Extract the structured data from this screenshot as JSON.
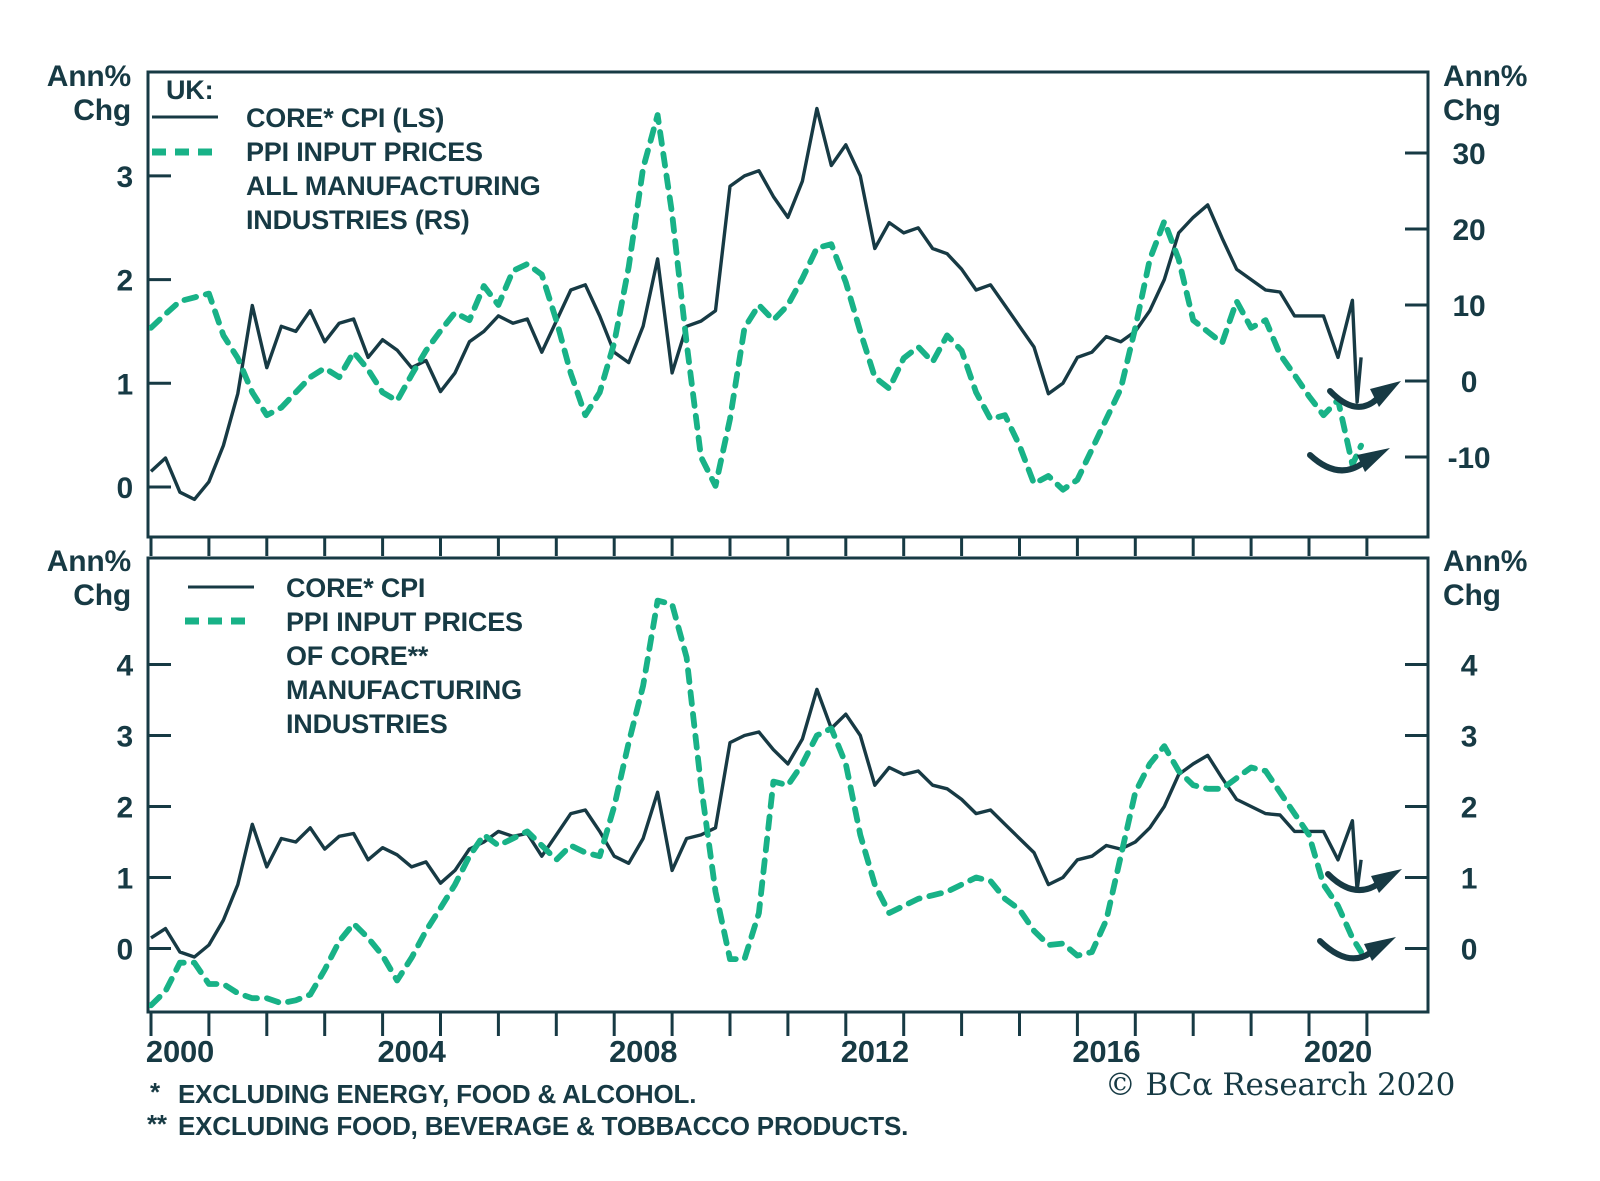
{
  "page": {
    "background": "#ffffff",
    "ink_color": "#173a44",
    "accent_color": "#18b287"
  },
  "copyright": "© BCα Research 2020",
  "footnotes": [
    {
      "marker": "*",
      "text": "EXCLUDING ENERGY, FOOD & ALCOHOL."
    },
    {
      "marker": "**",
      "text": "EXCLUDING FOOD, BEVERAGE & TOBBACCO PRODUCTS."
    }
  ],
  "chart_data": [
    {
      "type": "line",
      "panel": "top",
      "legend": {
        "heading": "UK:",
        "entries": [
          {
            "style": "solid",
            "label_lines": [
              "CORE* CPI (LS)"
            ]
          },
          {
            "style": "dashed",
            "label_lines": [
              "PPI INPUT PRICES",
              "ALL MANUFACTURING",
              "INDUSTRIES (RS)"
            ]
          }
        ]
      },
      "left_axis": {
        "title": [
          "Ann%",
          "Chg"
        ],
        "ticks": [
          3,
          2,
          1,
          0
        ],
        "range": [
          -0.5,
          4.0
        ]
      },
      "right_axis": {
        "title": [
          "Ann%",
          "Chg"
        ],
        "ticks": [
          30,
          20,
          10,
          0,
          -10
        ],
        "range": [
          -20,
          41
        ]
      },
      "x_axis": {
        "labeled_years": [
          2000,
          2004,
          2008,
          2012,
          2016,
          2020
        ],
        "minor_tick_every": 1,
        "range": [
          1999.95,
          2022.1
        ],
        "grid": false
      },
      "series": [
        {
          "name": "CORE* CPI (LS)",
          "axis": "left",
          "style": "solid",
          "color": "#173a44",
          "x_start": 2000.0,
          "x_step": 0.25,
          "values": [
            0.15,
            0.28,
            -0.05,
            -0.12,
            0.05,
            0.4,
            0.9,
            1.75,
            1.15,
            1.55,
            1.5,
            1.7,
            1.4,
            1.58,
            1.62,
            1.25,
            1.42,
            1.32,
            1.15,
            1.22,
            0.92,
            1.1,
            1.4,
            1.5,
            1.65,
            1.58,
            1.62,
            1.3,
            1.6,
            1.9,
            1.95,
            1.65,
            1.3,
            1.2,
            1.55,
            2.2,
            1.1,
            1.55,
            1.6,
            1.7,
            2.9,
            3.0,
            3.05,
            2.8,
            2.6,
            2.95,
            3.65,
            3.1,
            3.3,
            3.0,
            2.3,
            2.55,
            2.45,
            2.5,
            2.3,
            2.25,
            2.1,
            1.9,
            1.95,
            1.75,
            1.55,
            1.35,
            0.9,
            1.0,
            1.25,
            1.3,
            1.45,
            1.4,
            1.5,
            1.7,
            2.0,
            2.45,
            2.6,
            2.72,
            2.4,
            2.1,
            2.0,
            1.9,
            1.88,
            1.65,
            1.65,
            1.65,
            1.25
          ],
          "tail": [
            [
              2020.75,
              1.8
            ],
            [
              2020.83,
              0.82
            ],
            [
              2020.9,
              1.25
            ]
          ]
        },
        {
          "name": "PPI INPUT PRICES ALL MANUFACTURING INDUSTRIES (RS)",
          "axis": "right",
          "style": "dashed",
          "color": "#18b287",
          "x_start": 2000.0,
          "x_step": 0.25,
          "values": [
            7.0,
            8.8,
            10.5,
            11.0,
            11.5,
            6.0,
            3.0,
            -1.5,
            -4.5,
            -3.5,
            -1.5,
            0.5,
            1.7,
            0.5,
            3.8,
            1.5,
            -1.5,
            -2.6,
            0.8,
            4.0,
            6.6,
            9.0,
            8.0,
            12.5,
            10.0,
            14.5,
            15.4,
            14.0,
            8.0,
            1.0,
            -4.5,
            -1.5,
            5.0,
            15.0,
            28.0,
            35.0,
            22.0,
            5.0,
            -10.0,
            -13.8,
            -5.0,
            7.0,
            10.0,
            8.0,
            10.0,
            13.5,
            17.5,
            18.0,
            13.0,
            6.5,
            0.5,
            -1.0,
            3.0,
            4.5,
            2.5,
            6.0,
            4.0,
            -1.5,
            -5.0,
            -4.5,
            -8.5,
            -13.5,
            -12.5,
            -14.3,
            -13.0,
            -9.0,
            -5.0,
            -1.0,
            7.0,
            16.0,
            21.0,
            16.0,
            8.0,
            6.5,
            5.0,
            10.5,
            7.0,
            8.0,
            3.5,
            0.8,
            -2.0,
            -4.5,
            -2.5
          ],
          "tail": [
            [
              2020.75,
              -11.0
            ],
            [
              2020.9,
              -8.5
            ]
          ]
        }
      ]
    },
    {
      "type": "line",
      "panel": "bottom",
      "legend": {
        "heading": "",
        "entries": [
          {
            "style": "solid",
            "label_lines": [
              "CORE* CPI"
            ]
          },
          {
            "style": "dashed",
            "label_lines": [
              "PPI INPUT PRICES",
              "OF CORE**",
              "MANUFACTURING",
              "INDUSTRIES"
            ]
          }
        ]
      },
      "left_axis": {
        "title": [
          "Ann%",
          "Chg"
        ],
        "ticks": [
          4,
          3,
          2,
          1,
          0
        ],
        "range": [
          -0.9,
          5.5
        ]
      },
      "right_axis": {
        "title": [
          "Ann%",
          "Chg"
        ],
        "ticks": [
          4,
          3,
          2,
          1,
          0
        ],
        "range": [
          -0.9,
          5.5
        ]
      },
      "x_axis": {
        "labeled_years": [
          2000,
          2004,
          2008,
          2012,
          2016,
          2020
        ],
        "minor_tick_every": 1,
        "range": [
          1999.95,
          2022.1
        ],
        "grid": false
      },
      "series": [
        {
          "name": "CORE* CPI",
          "axis": "left",
          "style": "solid",
          "color": "#173a44",
          "x_start": 2000.0,
          "x_step": 0.25,
          "values": [
            0.15,
            0.28,
            -0.05,
            -0.12,
            0.05,
            0.4,
            0.9,
            1.75,
            1.15,
            1.55,
            1.5,
            1.7,
            1.4,
            1.58,
            1.62,
            1.25,
            1.42,
            1.32,
            1.15,
            1.22,
            0.92,
            1.1,
            1.4,
            1.5,
            1.65,
            1.58,
            1.62,
            1.3,
            1.6,
            1.9,
            1.95,
            1.65,
            1.3,
            1.2,
            1.55,
            2.2,
            1.1,
            1.55,
            1.6,
            1.7,
            2.9,
            3.0,
            3.05,
            2.8,
            2.6,
            2.95,
            3.65,
            3.1,
            3.3,
            3.0,
            2.3,
            2.55,
            2.45,
            2.5,
            2.3,
            2.25,
            2.1,
            1.9,
            1.95,
            1.75,
            1.55,
            1.35,
            0.9,
            1.0,
            1.25,
            1.3,
            1.45,
            1.4,
            1.5,
            1.7,
            2.0,
            2.45,
            2.6,
            2.72,
            2.4,
            2.1,
            2.0,
            1.9,
            1.88,
            1.65,
            1.65,
            1.65,
            1.25
          ],
          "tail": [
            [
              2020.75,
              1.8
            ],
            [
              2020.83,
              0.82
            ],
            [
              2020.9,
              1.25
            ]
          ]
        },
        {
          "name": "PPI INPUT PRICES OF CORE** MANUFACTURING INDUSTRIES",
          "axis": "right",
          "style": "dashed",
          "color": "#18b287",
          "x_start": 2000.0,
          "x_step": 0.25,
          "values": [
            -0.8,
            -0.6,
            -0.2,
            -0.2,
            -0.5,
            -0.5,
            -0.63,
            -0.7,
            -0.7,
            -0.77,
            -0.73,
            -0.65,
            -0.3,
            0.1,
            0.35,
            0.15,
            -0.1,
            -0.45,
            -0.13,
            0.25,
            0.57,
            0.9,
            1.3,
            1.6,
            1.45,
            1.55,
            1.65,
            1.45,
            1.25,
            1.45,
            1.35,
            1.3,
            2.0,
            2.9,
            3.7,
            4.9,
            4.85,
            4.1,
            2.3,
            0.8,
            -0.15,
            -0.15,
            0.5,
            2.35,
            2.3,
            2.6,
            3.0,
            3.1,
            2.6,
            1.6,
            0.9,
            0.5,
            0.6,
            0.7,
            0.75,
            0.8,
            0.9,
            1.0,
            0.95,
            0.7,
            0.55,
            0.25,
            0.05,
            0.07,
            -0.1,
            -0.05,
            0.4,
            1.3,
            2.2,
            2.6,
            2.85,
            2.5,
            2.3,
            2.25,
            2.25,
            2.4,
            2.55,
            2.5,
            2.2,
            1.9,
            1.6,
            0.9,
            0.6
          ],
          "tail": [
            [
              2020.75,
              0.15
            ],
            [
              2020.9,
              -0.05
            ]
          ]
        }
      ]
    }
  ]
}
